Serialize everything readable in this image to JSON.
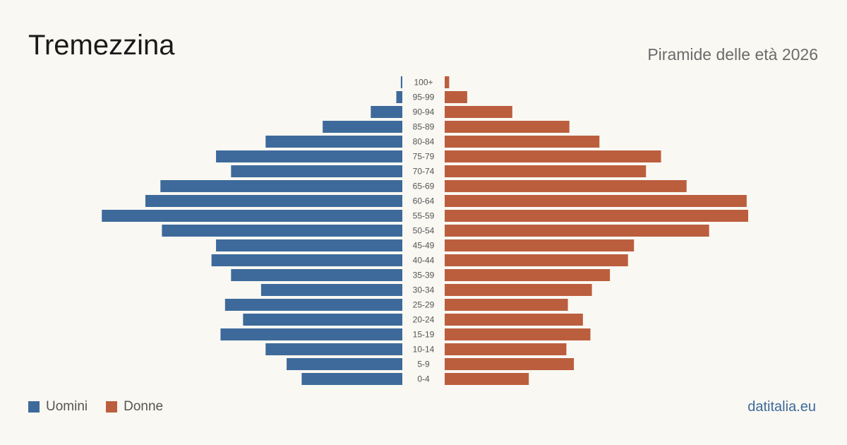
{
  "header": {
    "title": "Tremezzina",
    "subtitle": "Piramide delle età 2026"
  },
  "footer": {
    "brand": "datitalia.eu"
  },
  "colors": {
    "male": "#3d6a9b",
    "female": "#bb5e3e",
    "background": "#faf8f3"
  },
  "chart_data": {
    "type": "bar",
    "orientation": "horizontal-pyramid",
    "categories": [
      "100+",
      "95-99",
      "90-94",
      "85-89",
      "80-84",
      "75-79",
      "70-74",
      "65-69",
      "60-64",
      "55-59",
      "50-54",
      "45-49",
      "40-44",
      "35-39",
      "30-34",
      "25-29",
      "20-24",
      "15-19",
      "10-14",
      "5-9",
      "0-4"
    ],
    "series": [
      {
        "name": "Uomini",
        "values": [
          1,
          4,
          21,
          53,
          91,
          124,
          114,
          161,
          171,
          200,
          160,
          124,
          127,
          114,
          94,
          118,
          106,
          121,
          91,
          77,
          67
        ]
      },
      {
        "name": "Donne",
        "values": [
          3,
          15,
          45,
          83,
          103,
          144,
          134,
          161,
          201,
          202,
          176,
          126,
          122,
          110,
          98,
          82,
          92,
          97,
          81,
          86,
          56
        ]
      }
    ],
    "legend_position": "bottom-left",
    "grid": false
  }
}
